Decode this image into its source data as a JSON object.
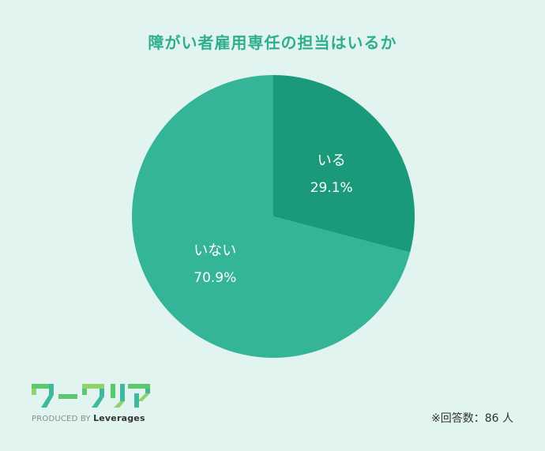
{
  "chart_data": {
    "type": "pie",
    "title": "障がい者雇用専任の担当はいるか",
    "slices": [
      {
        "label": "いる",
        "value": 29.1,
        "value_label": "29.1%",
        "color": "#1a9a7a"
      },
      {
        "label": "いない",
        "value": 70.9,
        "value_label": "70.9%",
        "color": "#35b597"
      }
    ]
  },
  "logo": {
    "wordmark": "ワークリア",
    "produced_by": "PRODUCED BY",
    "brand": "Leverages",
    "colors": [
      "#5cc76d",
      "#3fb8a0",
      "#8fd36a"
    ]
  },
  "footer": {
    "note": "※回答数：86 人"
  },
  "colors": {
    "background": "#e2f4f0",
    "title": "#2fae8f"
  }
}
